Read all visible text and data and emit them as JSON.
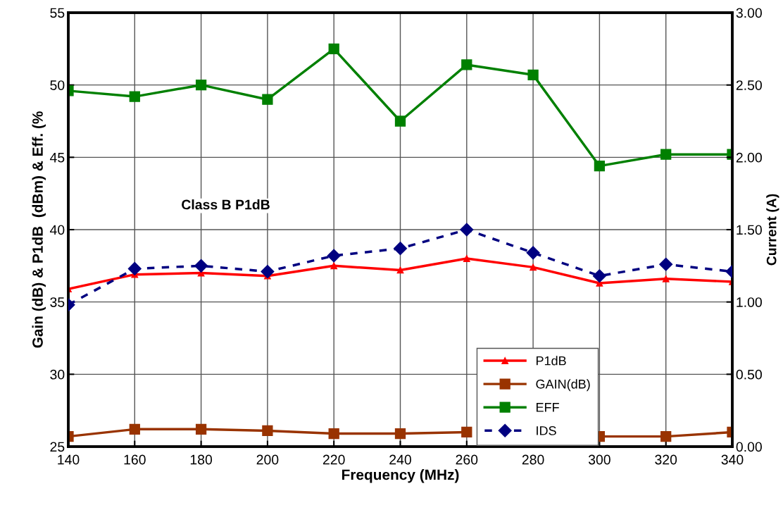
{
  "chart_data": {
    "type": "line",
    "xlabel": "Frequency (MHz)",
    "ylabel": "Gain (dB) & P1dB  (dBm) & Eff. (%",
    "y2label": "Current (A)",
    "x": [
      140,
      160,
      180,
      200,
      220,
      240,
      260,
      280,
      300,
      320,
      340
    ],
    "series": [
      {
        "name": "P1dB",
        "color": "#ff0000",
        "marker": "triangle",
        "line_style": "solid",
        "values": [
          35.9,
          36.9,
          37.0,
          36.8,
          37.5,
          37.2,
          38.0,
          37.4,
          36.3,
          36.6,
          36.4
        ]
      },
      {
        "name": "GAIN(dB)",
        "color": "#993300",
        "marker": "square",
        "line_style": "solid",
        "values": [
          25.7,
          26.2,
          26.2,
          26.1,
          25.9,
          25.9,
          26.0,
          null,
          25.7,
          25.7,
          26.0
        ]
      },
      {
        "name": "EFF",
        "color": "#008000",
        "marker": "square",
        "line_style": "solid",
        "values": [
          49.6,
          49.2,
          50.0,
          49.0,
          52.5,
          47.5,
          51.4,
          50.7,
          44.4,
          45.2,
          45.2
        ]
      },
      {
        "name": "IDS",
        "color": "#000080",
        "marker": "diamond",
        "line_style": "dashed",
        "axis": "y2",
        "values": [
          0.98,
          1.23,
          1.25,
          1.21,
          1.32,
          1.37,
          1.5,
          1.34,
          1.18,
          1.26,
          1.21
        ]
      }
    ],
    "xlim": [
      140,
      340
    ],
    "xticks": [
      140,
      160,
      180,
      200,
      220,
      240,
      260,
      280,
      300,
      320,
      340
    ],
    "ylim": [
      25,
      55
    ],
    "yticks": [
      25,
      30,
      35,
      40,
      45,
      50,
      55
    ],
    "y2lim": [
      0,
      3
    ],
    "y2ticks": [
      {
        "value": 0,
        "label": "0.00"
      },
      {
        "value": 0.5,
        "label": "0.50"
      },
      {
        "value": 1,
        "label": "1.00"
      },
      {
        "value": 1.5,
        "label": "1.50"
      },
      {
        "value": 2,
        "label": "2.00"
      },
      {
        "value": 2.5,
        "label": "2.50"
      },
      {
        "value": 3,
        "label": "3.00"
      }
    ],
    "annotations": [
      "Class B P1dB"
    ],
    "grid": true,
    "legend": "bottom right"
  }
}
